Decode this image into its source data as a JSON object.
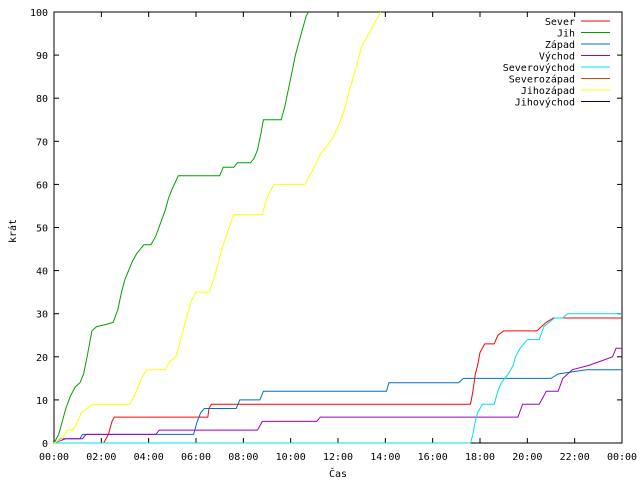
{
  "chart_data": {
    "type": "line",
    "title": "",
    "xlabel": "Čas",
    "ylabel": "krát",
    "xlim": [
      0,
      24
    ],
    "ylim": [
      0,
      100
    ],
    "x_ticks": [
      "00:00",
      "02:00",
      "04:00",
      "06:00",
      "08:00",
      "10:00",
      "12:00",
      "14:00",
      "16:00",
      "18:00",
      "20:00",
      "22:00",
      "00:00"
    ],
    "y_ticks": [
      "0",
      "10",
      "20",
      "30",
      "40",
      "50",
      "60",
      "70",
      "80",
      "90",
      "100"
    ],
    "grid": false,
    "legend_position": "top-right",
    "series": [
      {
        "name": "Sever",
        "color": "#ff0000",
        "points": [
          [
            0,
            0
          ],
          [
            2.1,
            0
          ],
          [
            2.3,
            2
          ],
          [
            2.45,
            5
          ],
          [
            2.55,
            6
          ],
          [
            6.5,
            6
          ],
          [
            6.55,
            8
          ],
          [
            6.65,
            9
          ],
          [
            17.6,
            9
          ],
          [
            17.7,
            12
          ],
          [
            17.8,
            16
          ],
          [
            17.9,
            18
          ],
          [
            18,
            21
          ],
          [
            18.2,
            23
          ],
          [
            18.6,
            23
          ],
          [
            18.75,
            25
          ],
          [
            19,
            26
          ],
          [
            20.4,
            26
          ],
          [
            20.6,
            27
          ],
          [
            20.8,
            28
          ],
          [
            21.1,
            29
          ],
          [
            24,
            29
          ]
        ]
      },
      {
        "name": "Jih",
        "color": "#00a000",
        "points": [
          [
            0,
            0
          ],
          [
            0.2,
            2
          ],
          [
            0.35,
            5
          ],
          [
            0.5,
            8
          ],
          [
            0.7,
            11
          ],
          [
            0.9,
            13
          ],
          [
            1.1,
            14
          ],
          [
            1.25,
            16
          ],
          [
            1.4,
            20
          ],
          [
            1.6,
            26
          ],
          [
            1.8,
            27
          ],
          [
            2.2,
            27.5
          ],
          [
            2.5,
            28
          ],
          [
            2.7,
            31
          ],
          [
            2.85,
            35
          ],
          [
            3,
            38
          ],
          [
            3.15,
            40
          ],
          [
            3.3,
            42
          ],
          [
            3.5,
            44
          ],
          [
            3.8,
            46
          ],
          [
            4.1,
            46
          ],
          [
            4.3,
            48
          ],
          [
            4.5,
            51
          ],
          [
            4.7,
            54
          ],
          [
            4.85,
            57
          ],
          [
            5,
            59
          ],
          [
            5.25,
            62
          ],
          [
            7,
            62
          ],
          [
            7.15,
            64
          ],
          [
            7.6,
            64
          ],
          [
            7.75,
            65
          ],
          [
            8.3,
            65
          ],
          [
            8.45,
            66
          ],
          [
            8.6,
            68
          ],
          [
            8.75,
            72
          ],
          [
            8.85,
            75
          ],
          [
            9.6,
            75
          ],
          [
            9.75,
            78
          ],
          [
            9.9,
            82
          ],
          [
            10.05,
            86
          ],
          [
            10.2,
            90
          ],
          [
            10.35,
            93
          ],
          [
            10.5,
            96
          ],
          [
            10.65,
            99
          ],
          [
            10.75,
            100
          ]
        ]
      },
      {
        "name": "Západ",
        "color": "#0070c0",
        "points": [
          [
            0,
            0
          ],
          [
            0.3,
            1
          ],
          [
            1.1,
            1
          ],
          [
            1.2,
            2
          ],
          [
            5.9,
            2
          ],
          [
            6.05,
            5
          ],
          [
            6.2,
            7
          ],
          [
            6.35,
            8
          ],
          [
            7.7,
            8
          ],
          [
            7.85,
            10
          ],
          [
            8.7,
            10
          ],
          [
            8.85,
            12
          ],
          [
            14.05,
            12
          ],
          [
            14.15,
            14
          ],
          [
            17.1,
            14
          ],
          [
            17.3,
            15
          ],
          [
            21,
            15
          ],
          [
            21.3,
            16
          ],
          [
            22.5,
            17
          ],
          [
            24,
            17
          ]
        ]
      },
      {
        "name": "Východ",
        "color": "#a000c0",
        "points": [
          [
            0,
            0
          ],
          [
            0.5,
            1
          ],
          [
            1.2,
            1
          ],
          [
            1.35,
            2
          ],
          [
            4.3,
            2
          ],
          [
            4.45,
            3
          ],
          [
            8.6,
            3
          ],
          [
            8.8,
            5
          ],
          [
            11.1,
            5
          ],
          [
            11.25,
            6
          ],
          [
            19.6,
            6
          ],
          [
            19.8,
            9
          ],
          [
            20.5,
            9
          ],
          [
            20.8,
            12
          ],
          [
            21.3,
            12
          ],
          [
            21.5,
            15
          ],
          [
            21.9,
            17
          ],
          [
            22.6,
            18
          ],
          [
            23.1,
            19
          ],
          [
            23.6,
            20
          ],
          [
            23.75,
            22
          ],
          [
            24,
            22
          ]
        ]
      },
      {
        "name": "Severovýchod",
        "color": "#00e0e0",
        "points": [
          [
            0,
            0
          ],
          [
            17.6,
            0
          ],
          [
            17.7,
            2
          ],
          [
            17.8,
            5
          ],
          [
            17.9,
            7
          ],
          [
            18.1,
            9
          ],
          [
            18.6,
            9
          ],
          [
            18.75,
            12
          ],
          [
            18.9,
            14
          ],
          [
            19.2,
            16
          ],
          [
            19.4,
            18
          ],
          [
            19.5,
            20
          ],
          [
            19.7,
            22
          ],
          [
            20,
            24
          ],
          [
            20.5,
            24
          ],
          [
            20.7,
            27
          ],
          [
            21.15,
            29
          ],
          [
            21.5,
            29
          ],
          [
            21.7,
            30
          ],
          [
            24,
            30
          ]
        ]
      },
      {
        "name": "Severozápad",
        "color": "#c05000",
        "points": []
      },
      {
        "name": "Jihozápad",
        "color": "#ffff00",
        "points": [
          [
            0,
            0
          ],
          [
            0.35,
            1
          ],
          [
            0.55,
            3
          ],
          [
            0.8,
            3
          ],
          [
            1,
            5
          ],
          [
            1.15,
            7
          ],
          [
            1.4,
            8
          ],
          [
            1.65,
            9
          ],
          [
            3.2,
            9
          ],
          [
            3.4,
            11
          ],
          [
            3.55,
            13
          ],
          [
            3.7,
            15
          ],
          [
            3.9,
            17
          ],
          [
            4.7,
            17
          ],
          [
            4.9,
            19
          ],
          [
            5.15,
            20
          ],
          [
            5.3,
            23
          ],
          [
            5.55,
            28
          ],
          [
            5.8,
            33
          ],
          [
            6,
            35
          ],
          [
            6.55,
            35
          ],
          [
            6.75,
            38
          ],
          [
            6.95,
            42
          ],
          [
            7.15,
            46
          ],
          [
            7.4,
            50
          ],
          [
            7.6,
            53
          ],
          [
            8.8,
            53
          ],
          [
            8.95,
            56
          ],
          [
            9.1,
            58
          ],
          [
            9.3,
            60
          ],
          [
            10.6,
            60
          ],
          [
            10.8,
            62
          ],
          [
            11,
            64
          ],
          [
            11.25,
            67
          ],
          [
            11.55,
            69
          ],
          [
            11.8,
            71
          ],
          [
            12.05,
            74
          ],
          [
            12.25,
            77
          ],
          [
            12.45,
            81
          ],
          [
            12.65,
            85
          ],
          [
            12.85,
            89
          ],
          [
            13,
            92
          ],
          [
            13.2,
            94
          ],
          [
            13.4,
            96
          ],
          [
            13.6,
            98
          ],
          [
            13.8,
            100
          ]
        ]
      },
      {
        "name": "Jihovýchod",
        "color": "#000090",
        "points": []
      }
    ]
  }
}
